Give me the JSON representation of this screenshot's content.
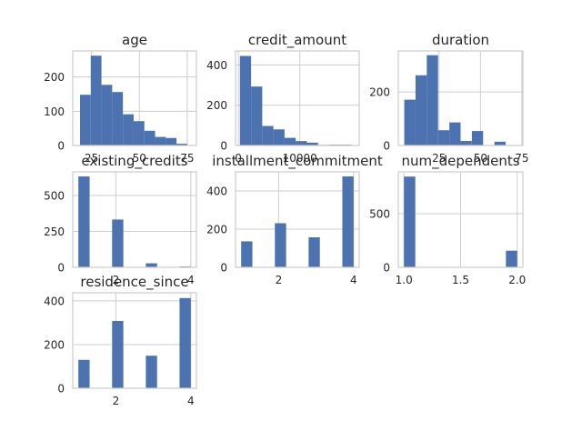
{
  "figure": {
    "background": "#ffffff"
  },
  "colors": {
    "bar": "#4c72b0",
    "grid": "#cccccc",
    "text": "#262626"
  },
  "chart_data": [
    {
      "type": "bar",
      "title": "age",
      "xlabel": "",
      "ylabel": "",
      "xlim": [
        15.2,
        79.8
      ],
      "ylim": [
        0,
        276
      ],
      "bin_edges": [
        19,
        24.6,
        30.2,
        35.8,
        41.4,
        47,
        52.6,
        58.2,
        63.8,
        69.4,
        75
      ],
      "values": [
        148,
        262,
        177,
        156,
        91,
        71,
        43,
        25,
        22,
        5
      ],
      "xticks": [
        25,
        50,
        75
      ],
      "xtick_labels": [
        "25",
        "50",
        "75"
      ],
      "yticks": [
        0,
        100,
        200
      ],
      "ytick_labels": [
        "0",
        "100",
        "200"
      ],
      "grid": true
    },
    {
      "type": "bar",
      "title": "credit_amount",
      "xlabel": "",
      "ylabel": "",
      "xlim": [
        -462,
        19656
      ],
      "ylim": [
        0,
        470
      ],
      "bin_edges": [
        250,
        2066,
        3882,
        5698,
        7514,
        9330,
        11146,
        12962,
        14778,
        16594,
        18410
      ],
      "values": [
        445,
        293,
        97,
        80,
        38,
        22,
        14,
        3,
        4,
        4
      ],
      "xticks": [
        0,
        10000
      ],
      "xtick_labels": [
        "0",
        "10000"
      ],
      "yticks": [
        0,
        200,
        400
      ],
      "ytick_labels": [
        "0",
        "200",
        "400"
      ],
      "grid": true
    },
    {
      "type": "bar",
      "title": "duration",
      "xlabel": "",
      "ylabel": "",
      "xlim": [
        0.4,
        75.6
      ],
      "ylim": [
        0,
        353
      ],
      "bin_edges": [
        4,
        10.8,
        17.6,
        24.4,
        31.2,
        38,
        44.8,
        51.6,
        58.4,
        65.2,
        72
      ],
      "values": [
        171,
        262,
        337,
        57,
        86,
        17,
        54,
        0,
        14,
        1
      ],
      "xticks": [
        25,
        50,
        75
      ],
      "xtick_labels": [
        "25",
        "50",
        "75"
      ],
      "yticks": [
        0,
        200
      ],
      "ytick_labels": [
        "0",
        "200"
      ],
      "grid": true
    },
    {
      "type": "bar",
      "title": "existing_credits",
      "xlabel": "",
      "ylabel": "",
      "xlim": [
        0.85,
        4.15
      ],
      "ylim": [
        0,
        665
      ],
      "bin_edges": [
        1,
        1.3,
        1.6,
        1.9,
        2.2,
        2.5,
        2.8,
        3.1,
        3.4,
        3.7,
        4
      ],
      "values": [
        633,
        0,
        0,
        333,
        0,
        0,
        28,
        0,
        0,
        6
      ],
      "xticks": [
        2,
        4
      ],
      "xtick_labels": [
        "2",
        "4"
      ],
      "yticks": [
        0,
        250,
        500
      ],
      "ytick_labels": [
        "0",
        "250",
        "500"
      ],
      "grid": true
    },
    {
      "type": "bar",
      "title": "installment_commitment",
      "xlabel": "",
      "ylabel": "",
      "xlim": [
        0.85,
        4.15
      ],
      "ylim": [
        0,
        500
      ],
      "bin_edges": [
        1,
        1.3,
        1.6,
        1.9,
        2.2,
        2.5,
        2.8,
        3.1,
        3.4,
        3.7,
        4
      ],
      "values": [
        136,
        0,
        0,
        231,
        0,
        0,
        157,
        0,
        0,
        476
      ],
      "xticks": [
        2,
        4
      ],
      "xtick_labels": [
        "2",
        "4"
      ],
      "yticks": [
        0,
        200,
        400
      ],
      "ytick_labels": [
        "0",
        "200",
        "400"
      ],
      "grid": true
    },
    {
      "type": "bar",
      "title": "num_dependents",
      "xlabel": "",
      "ylabel": "",
      "xlim": [
        0.95,
        2.05
      ],
      "ylim": [
        0,
        889
      ],
      "bin_edges": [
        1,
        1.1,
        1.2,
        1.3,
        1.4,
        1.5,
        1.6,
        1.7,
        1.8,
        1.9,
        2
      ],
      "values": [
        845,
        0,
        0,
        0,
        0,
        0,
        0,
        0,
        0,
        155
      ],
      "xticks": [
        1.0,
        1.5,
        2.0
      ],
      "xtick_labels": [
        "1.0",
        "1.5",
        "2.0"
      ],
      "yticks": [
        0,
        500
      ],
      "ytick_labels": [
        "0",
        "500"
      ],
      "grid": true
    },
    {
      "type": "bar",
      "title": "residence_since",
      "xlabel": "",
      "ylabel": "",
      "xlim": [
        0.85,
        4.15
      ],
      "ylim": [
        0,
        437
      ],
      "bin_edges": [
        1,
        1.3,
        1.6,
        1.9,
        2.2,
        2.5,
        2.8,
        3.1,
        3.4,
        3.7,
        4
      ],
      "values": [
        130,
        0,
        0,
        308,
        0,
        0,
        149,
        0,
        0,
        413
      ],
      "xticks": [
        2,
        4
      ],
      "xtick_labels": [
        "2",
        "4"
      ],
      "yticks": [
        0,
        200,
        400
      ],
      "ytick_labels": [
        "0",
        "200",
        "400"
      ],
      "grid": true
    }
  ]
}
